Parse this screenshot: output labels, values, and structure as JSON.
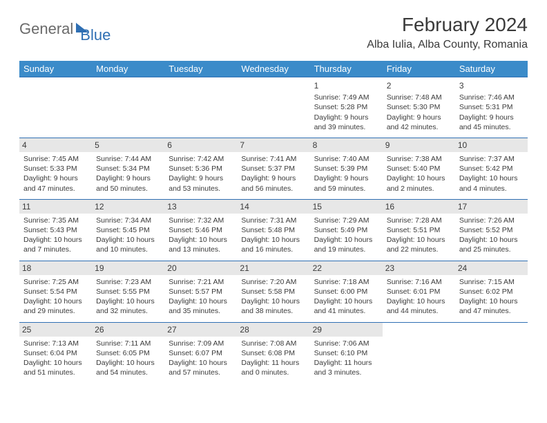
{
  "logo": {
    "part1": "General",
    "part2": "Blue"
  },
  "title": "February 2024",
  "location": "Alba Iulia, Alba County, Romania",
  "colors": {
    "header_bg": "#3b8bc9",
    "header_text": "#ffffff",
    "row_border": "#2f6fb3",
    "daynum_bg": "#e7e7e7",
    "text": "#3a3a3a",
    "logo_gray": "#6a6a6a",
    "logo_blue": "#2f6fb3",
    "page_bg": "#ffffff"
  },
  "typography": {
    "title_fontsize": 28,
    "location_fontsize": 16,
    "header_fontsize": 13,
    "cell_fontsize": 10.5
  },
  "weekdays": [
    "Sunday",
    "Monday",
    "Tuesday",
    "Wednesday",
    "Thursday",
    "Friday",
    "Saturday"
  ],
  "weeks": [
    [
      {
        "n": "",
        "l1": "",
        "l2": "",
        "l3": "",
        "l4": ""
      },
      {
        "n": "",
        "l1": "",
        "l2": "",
        "l3": "",
        "l4": ""
      },
      {
        "n": "",
        "l1": "",
        "l2": "",
        "l3": "",
        "l4": ""
      },
      {
        "n": "",
        "l1": "",
        "l2": "",
        "l3": "",
        "l4": ""
      },
      {
        "n": "1",
        "l1": "Sunrise: 7:49 AM",
        "l2": "Sunset: 5:28 PM",
        "l3": "Daylight: 9 hours",
        "l4": "and 39 minutes."
      },
      {
        "n": "2",
        "l1": "Sunrise: 7:48 AM",
        "l2": "Sunset: 5:30 PM",
        "l3": "Daylight: 9 hours",
        "l4": "and 42 minutes."
      },
      {
        "n": "3",
        "l1": "Sunrise: 7:46 AM",
        "l2": "Sunset: 5:31 PM",
        "l3": "Daylight: 9 hours",
        "l4": "and 45 minutes."
      }
    ],
    [
      {
        "n": "4",
        "l1": "Sunrise: 7:45 AM",
        "l2": "Sunset: 5:33 PM",
        "l3": "Daylight: 9 hours",
        "l4": "and 47 minutes."
      },
      {
        "n": "5",
        "l1": "Sunrise: 7:44 AM",
        "l2": "Sunset: 5:34 PM",
        "l3": "Daylight: 9 hours",
        "l4": "and 50 minutes."
      },
      {
        "n": "6",
        "l1": "Sunrise: 7:42 AM",
        "l2": "Sunset: 5:36 PM",
        "l3": "Daylight: 9 hours",
        "l4": "and 53 minutes."
      },
      {
        "n": "7",
        "l1": "Sunrise: 7:41 AM",
        "l2": "Sunset: 5:37 PM",
        "l3": "Daylight: 9 hours",
        "l4": "and 56 minutes."
      },
      {
        "n": "8",
        "l1": "Sunrise: 7:40 AM",
        "l2": "Sunset: 5:39 PM",
        "l3": "Daylight: 9 hours",
        "l4": "and 59 minutes."
      },
      {
        "n": "9",
        "l1": "Sunrise: 7:38 AM",
        "l2": "Sunset: 5:40 PM",
        "l3": "Daylight: 10 hours",
        "l4": "and 2 minutes."
      },
      {
        "n": "10",
        "l1": "Sunrise: 7:37 AM",
        "l2": "Sunset: 5:42 PM",
        "l3": "Daylight: 10 hours",
        "l4": "and 4 minutes."
      }
    ],
    [
      {
        "n": "11",
        "l1": "Sunrise: 7:35 AM",
        "l2": "Sunset: 5:43 PM",
        "l3": "Daylight: 10 hours",
        "l4": "and 7 minutes."
      },
      {
        "n": "12",
        "l1": "Sunrise: 7:34 AM",
        "l2": "Sunset: 5:45 PM",
        "l3": "Daylight: 10 hours",
        "l4": "and 10 minutes."
      },
      {
        "n": "13",
        "l1": "Sunrise: 7:32 AM",
        "l2": "Sunset: 5:46 PM",
        "l3": "Daylight: 10 hours",
        "l4": "and 13 minutes."
      },
      {
        "n": "14",
        "l1": "Sunrise: 7:31 AM",
        "l2": "Sunset: 5:48 PM",
        "l3": "Daylight: 10 hours",
        "l4": "and 16 minutes."
      },
      {
        "n": "15",
        "l1": "Sunrise: 7:29 AM",
        "l2": "Sunset: 5:49 PM",
        "l3": "Daylight: 10 hours",
        "l4": "and 19 minutes."
      },
      {
        "n": "16",
        "l1": "Sunrise: 7:28 AM",
        "l2": "Sunset: 5:51 PM",
        "l3": "Daylight: 10 hours",
        "l4": "and 22 minutes."
      },
      {
        "n": "17",
        "l1": "Sunrise: 7:26 AM",
        "l2": "Sunset: 5:52 PM",
        "l3": "Daylight: 10 hours",
        "l4": "and 25 minutes."
      }
    ],
    [
      {
        "n": "18",
        "l1": "Sunrise: 7:25 AM",
        "l2": "Sunset: 5:54 PM",
        "l3": "Daylight: 10 hours",
        "l4": "and 29 minutes."
      },
      {
        "n": "19",
        "l1": "Sunrise: 7:23 AM",
        "l2": "Sunset: 5:55 PM",
        "l3": "Daylight: 10 hours",
        "l4": "and 32 minutes."
      },
      {
        "n": "20",
        "l1": "Sunrise: 7:21 AM",
        "l2": "Sunset: 5:57 PM",
        "l3": "Daylight: 10 hours",
        "l4": "and 35 minutes."
      },
      {
        "n": "21",
        "l1": "Sunrise: 7:20 AM",
        "l2": "Sunset: 5:58 PM",
        "l3": "Daylight: 10 hours",
        "l4": "and 38 minutes."
      },
      {
        "n": "22",
        "l1": "Sunrise: 7:18 AM",
        "l2": "Sunset: 6:00 PM",
        "l3": "Daylight: 10 hours",
        "l4": "and 41 minutes."
      },
      {
        "n": "23",
        "l1": "Sunrise: 7:16 AM",
        "l2": "Sunset: 6:01 PM",
        "l3": "Daylight: 10 hours",
        "l4": "and 44 minutes."
      },
      {
        "n": "24",
        "l1": "Sunrise: 7:15 AM",
        "l2": "Sunset: 6:02 PM",
        "l3": "Daylight: 10 hours",
        "l4": "and 47 minutes."
      }
    ],
    [
      {
        "n": "25",
        "l1": "Sunrise: 7:13 AM",
        "l2": "Sunset: 6:04 PM",
        "l3": "Daylight: 10 hours",
        "l4": "and 51 minutes."
      },
      {
        "n": "26",
        "l1": "Sunrise: 7:11 AM",
        "l2": "Sunset: 6:05 PM",
        "l3": "Daylight: 10 hours",
        "l4": "and 54 minutes."
      },
      {
        "n": "27",
        "l1": "Sunrise: 7:09 AM",
        "l2": "Sunset: 6:07 PM",
        "l3": "Daylight: 10 hours",
        "l4": "and 57 minutes."
      },
      {
        "n": "28",
        "l1": "Sunrise: 7:08 AM",
        "l2": "Sunset: 6:08 PM",
        "l3": "Daylight: 11 hours",
        "l4": "and 0 minutes."
      },
      {
        "n": "29",
        "l1": "Sunrise: 7:06 AM",
        "l2": "Sunset: 6:10 PM",
        "l3": "Daylight: 11 hours",
        "l4": "and 3 minutes."
      },
      {
        "n": "",
        "l1": "",
        "l2": "",
        "l3": "",
        "l4": ""
      },
      {
        "n": "",
        "l1": "",
        "l2": "",
        "l3": "",
        "l4": ""
      }
    ]
  ]
}
